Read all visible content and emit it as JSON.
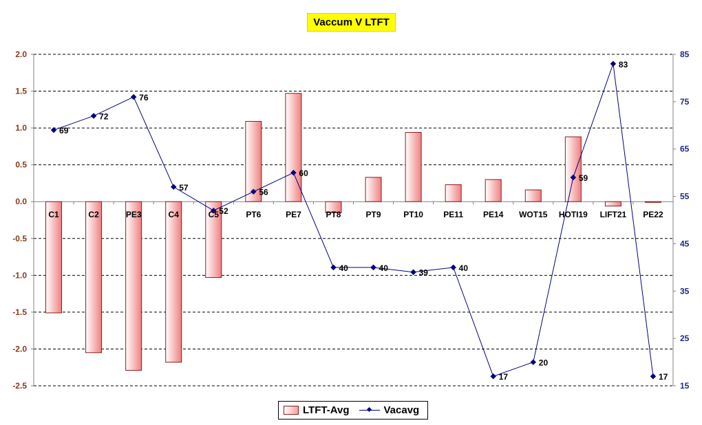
{
  "chart_data": {
    "type": "bar",
    "title": "Vaccum V LTFT",
    "categories": [
      "C1",
      "C2",
      "PE3",
      "C4",
      "C5",
      "PT6",
      "PE7",
      "PT8",
      "PT9",
      "PT10",
      "PE11",
      "PE14",
      "WOT15",
      "HOTI19",
      "LIFT21",
      "PE22"
    ],
    "series": [
      {
        "name": "LTFT-Avg",
        "type": "bar",
        "axis": "left",
        "values": [
          -1.51,
          -2.05,
          -2.29,
          -2.18,
          -1.03,
          1.09,
          1.47,
          -0.15,
          0.33,
          0.94,
          0.23,
          0.3,
          0.16,
          0.88,
          -0.06,
          -0.01
        ]
      },
      {
        "name": "Vacavg",
        "type": "line",
        "axis": "right",
        "values": [
          69,
          72,
          76,
          57,
          52,
          56,
          60,
          40,
          40,
          39,
          40,
          17,
          20,
          59,
          83,
          17
        ]
      }
    ],
    "data_labels": [
      "69",
      "72",
      "76",
      "57",
      "52",
      "56",
      "60",
      "40",
      "40",
      "39",
      "40",
      "17",
      "20",
      "59",
      "83",
      "17"
    ],
    "left_axis": {
      "ylim": [
        -2.5,
        2.0
      ],
      "ticks": [
        "2.0",
        "1.5",
        "1.0",
        "0.5",
        "0.0",
        "-0.5",
        "-1.0",
        "-1.5",
        "-2.0",
        "-2.5"
      ],
      "tick_values": [
        2.0,
        1.5,
        1.0,
        0.5,
        0.0,
        -0.5,
        -1.0,
        -1.5,
        -2.0,
        -2.5
      ]
    },
    "right_axis": {
      "ylim": [
        15,
        85
      ],
      "ticks": [
        "85",
        "75",
        "65",
        "55",
        "45",
        "35",
        "25",
        "15"
      ],
      "tick_values": [
        85,
        75,
        65,
        55,
        45,
        35,
        25,
        15
      ]
    },
    "grid": true,
    "legend": {
      "placement": "bottom",
      "entries": [
        "LTFT-Avg",
        "Vacavg"
      ]
    },
    "colors": {
      "bar_edge": "#8b1a1a",
      "bar_fill_light": "#ffffff",
      "bar_fill_dark": "#f08080",
      "line": "#000080",
      "left_axis_text": "#8b3a1a",
      "right_axis_text": "#1a2a8b",
      "title_bg": "#ffff00"
    }
  }
}
